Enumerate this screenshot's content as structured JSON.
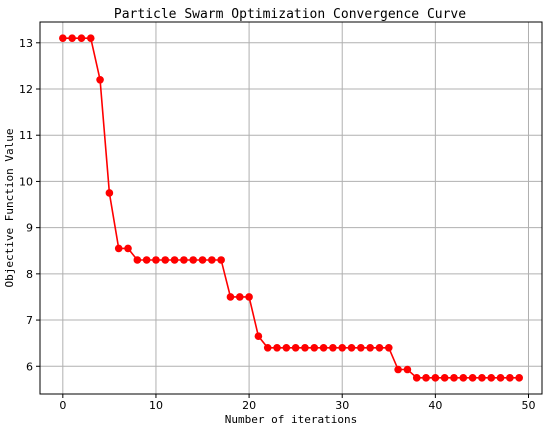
{
  "chart_data": {
    "type": "line",
    "title": "Particle Swarm Optimization Convergence Curve",
    "xlabel": "Number of iterations",
    "ylabel": "Objective Function Value",
    "xlim": [
      -2.45,
      51.45
    ],
    "ylim": [
      5.4,
      13.45
    ],
    "xticks": [
      0,
      10,
      20,
      30,
      40,
      50
    ],
    "yticks": [
      6,
      7,
      8,
      9,
      10,
      11,
      12,
      13
    ],
    "grid": true,
    "series": [
      {
        "color": "#ff0000",
        "marker": "circle",
        "x": [
          0,
          1,
          2,
          3,
          4,
          5,
          6,
          7,
          8,
          9,
          10,
          11,
          12,
          13,
          14,
          15,
          16,
          17,
          18,
          19,
          20,
          21,
          22,
          23,
          24,
          25,
          26,
          27,
          28,
          29,
          30,
          31,
          32,
          33,
          34,
          35,
          36,
          37,
          38,
          39,
          40,
          41,
          42,
          43,
          44,
          45,
          46,
          47,
          48,
          49
        ],
        "values": [
          13.1,
          13.1,
          13.1,
          13.1,
          12.2,
          9.75,
          8.55,
          8.55,
          8.3,
          8.3,
          8.3,
          8.3,
          8.3,
          8.3,
          8.3,
          8.3,
          8.3,
          8.3,
          7.5,
          7.5,
          7.5,
          6.65,
          6.4,
          6.4,
          6.4,
          6.4,
          6.4,
          6.4,
          6.4,
          6.4,
          6.4,
          6.4,
          6.4,
          6.4,
          6.4,
          6.4,
          5.93,
          5.93,
          5.75,
          5.75,
          5.75,
          5.75,
          5.75,
          5.75,
          5.75,
          5.75,
          5.75,
          5.75,
          5.75,
          5.75
        ]
      }
    ]
  }
}
